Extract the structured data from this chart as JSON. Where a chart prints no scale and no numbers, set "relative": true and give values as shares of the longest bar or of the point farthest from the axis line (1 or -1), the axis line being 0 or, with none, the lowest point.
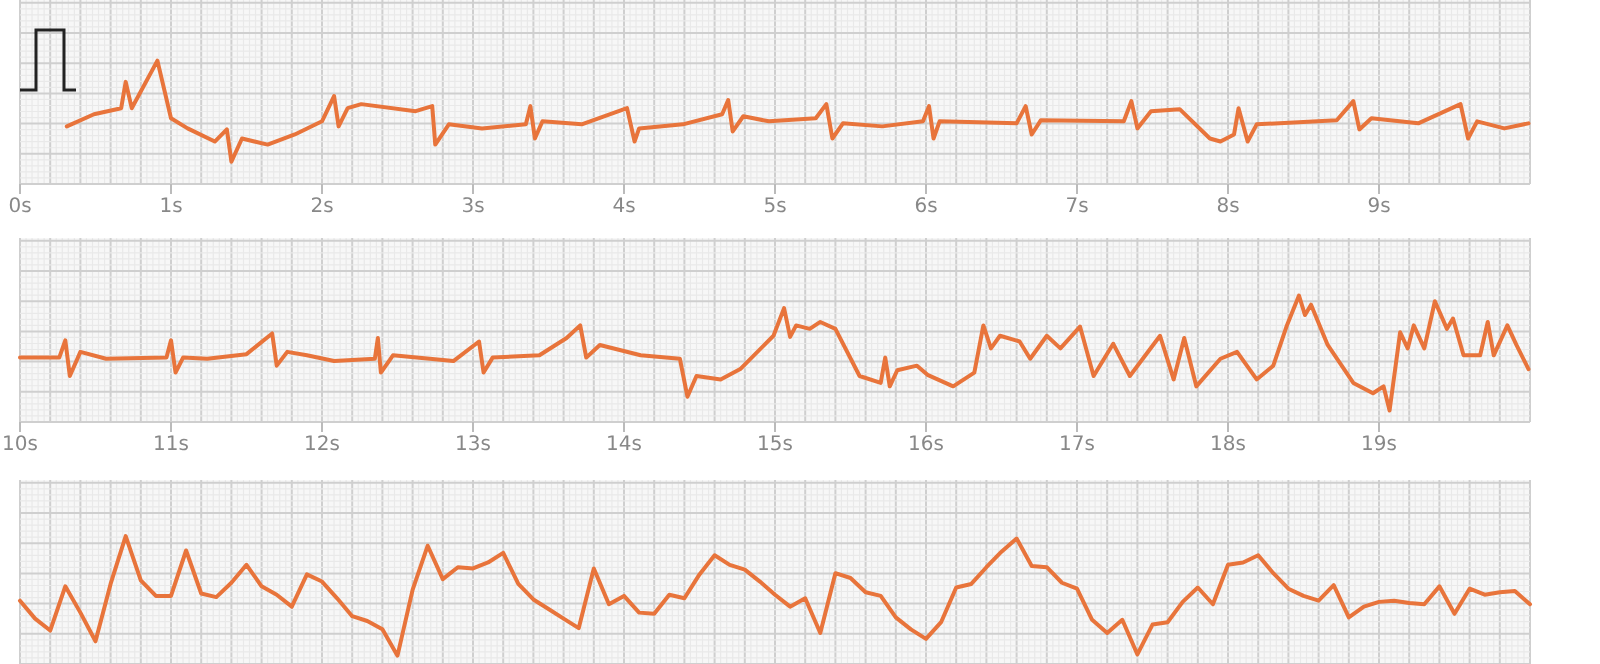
{
  "chart_data": [
    {
      "type": "line",
      "relative": true,
      "grid": true,
      "tick_labels": "x",
      "xlim": [
        0,
        10
      ],
      "xticks": [
        {
          "value": 0,
          "label": "0s"
        },
        {
          "value": 1,
          "label": "1s"
        },
        {
          "value": 2,
          "label": "2s"
        },
        {
          "value": 3,
          "label": "3s"
        },
        {
          "value": 4,
          "label": "4s"
        },
        {
          "value": 5,
          "label": "5s"
        },
        {
          "value": 6,
          "label": "6s"
        },
        {
          "value": 7,
          "label": "7s"
        },
        {
          "value": 8,
          "label": "8s"
        },
        {
          "value": 9,
          "label": "9s"
        }
      ],
      "x": [
        0.31,
        0.49,
        0.67,
        0.7,
        0.74,
        0.91,
        1.0,
        1.11,
        1.29,
        1.37,
        1.4,
        1.47,
        1.64,
        1.82,
        2.0,
        2.08,
        2.11,
        2.17,
        2.26,
        2.62,
        2.73,
        2.75,
        2.84,
        3.06,
        3.35,
        3.38,
        3.41,
        3.46,
        3.72,
        4.02,
        4.07,
        4.1,
        4.39,
        4.65,
        4.69,
        4.72,
        4.79,
        4.96,
        5.27,
        5.34,
        5.38,
        5.45,
        5.71,
        5.98,
        6.02,
        6.05,
        6.09,
        6.6,
        6.66,
        6.7,
        6.76,
        7.31,
        7.36,
        7.4,
        7.49,
        7.68,
        7.88,
        7.95,
        8.04,
        8.07,
        8.13,
        8.19,
        8.72,
        8.83,
        8.87,
        8.95,
        9.26,
        9.54,
        9.59,
        9.65,
        9.83,
        9.99
      ],
      "series": [
        {
          "color": "#e8743b",
          "values": [
            0.35,
            0.47,
            0.53,
            0.79,
            0.53,
            1,
            0.43,
            0.33,
            0.2,
            0.32,
            0,
            0.23,
            0.17,
            0.27,
            0.4,
            0.65,
            0.35,
            0.53,
            0.57,
            0.5,
            0.55,
            0.17,
            0.37,
            0.33,
            0.37,
            0.55,
            0.23,
            0.4,
            0.37,
            0.53,
            0.2,
            0.33,
            0.37,
            0.47,
            0.61,
            0.3,
            0.45,
            0.4,
            0.43,
            0.57,
            0.23,
            0.38,
            0.35,
            0.4,
            0.55,
            0.23,
            0.4,
            0.38,
            0.55,
            0.27,
            0.41,
            0.4,
            0.6,
            0.33,
            0.5,
            0.52,
            0.23,
            0.2,
            0.27,
            0.53,
            0.2,
            0.37,
            0.41,
            0.6,
            0.32,
            0.43,
            0.38,
            0.57,
            0.23,
            0.4,
            0.33,
            0.38
          ]
        }
      ]
    },
    {
      "type": "line",
      "relative": true,
      "grid": true,
      "tick_labels": "x",
      "xlim": [
        10,
        20
      ],
      "xticks": [
        {
          "value": 10,
          "label": "10s"
        },
        {
          "value": 11,
          "label": "11s"
        },
        {
          "value": 12,
          "label": "12s"
        },
        {
          "value": 13,
          "label": "13s"
        },
        {
          "value": 14,
          "label": "14s"
        },
        {
          "value": 15,
          "label": "15s"
        },
        {
          "value": 16,
          "label": "16s"
        },
        {
          "value": 17,
          "label": "17s"
        },
        {
          "value": 18,
          "label": "18s"
        },
        {
          "value": 19,
          "label": "19s"
        }
      ],
      "x": [
        10.0,
        10.26,
        10.3,
        10.33,
        10.4,
        10.57,
        10.97,
        11.0,
        11.03,
        11.08,
        11.24,
        11.5,
        11.67,
        11.7,
        11.77,
        11.9,
        12.08,
        12.35,
        12.37,
        12.39,
        12.47,
        12.87,
        13.04,
        13.07,
        13.13,
        13.44,
        13.62,
        13.71,
        13.75,
        13.84,
        14.11,
        14.37,
        14.42,
        14.48,
        14.64,
        14.77,
        14.99,
        15.06,
        15.1,
        15.14,
        15.23,
        15.3,
        15.4,
        15.56,
        15.7,
        15.73,
        15.76,
        15.81,
        15.94,
        16.01,
        16.18,
        16.32,
        16.38,
        16.43,
        16.49,
        16.62,
        16.69,
        16.8,
        16.89,
        17.02,
        17.11,
        17.24,
        17.35,
        17.55,
        17.64,
        17.71,
        17.79,
        17.95,
        18.06,
        18.19,
        18.3,
        18.39,
        18.47,
        18.51,
        18.55,
        18.66,
        18.83,
        18.96,
        19.03,
        19.07,
        19.14,
        19.19,
        19.23,
        19.3,
        19.37,
        19.45,
        19.49,
        19.56,
        19.67,
        19.72,
        19.76,
        19.85,
        19.91,
        19.99
      ],
      "series": [
        {
          "color": "#e8743b",
          "values": [
            0.46,
            0.46,
            0.61,
            0.3,
            0.51,
            0.45,
            0.46,
            0.61,
            0.33,
            0.46,
            0.45,
            0.49,
            0.67,
            0.39,
            0.51,
            0.48,
            0.43,
            0.45,
            0.63,
            0.33,
            0.48,
            0.43,
            0.6,
            0.33,
            0.46,
            0.48,
            0.63,
            0.74,
            0.46,
            0.57,
            0.48,
            0.45,
            0.12,
            0.3,
            0.27,
            0.36,
            0.65,
            0.89,
            0.64,
            0.74,
            0.71,
            0.77,
            0.71,
            0.3,
            0.24,
            0.46,
            0.21,
            0.35,
            0.39,
            0.31,
            0.21,
            0.33,
            0.74,
            0.54,
            0.65,
            0.6,
            0.45,
            0.65,
            0.54,
            0.73,
            0.3,
            0.58,
            0.3,
            0.65,
            0.27,
            0.63,
            0.21,
            0.45,
            0.51,
            0.27,
            0.39,
            0.74,
            1,
            0.83,
            0.92,
            0.57,
            0.24,
            0.15,
            0.21,
            0,
            0.68,
            0.54,
            0.74,
            0.54,
            0.95,
            0.71,
            0.8,
            0.48,
            0.48,
            0.77,
            0.48,
            0.74,
            0.57,
            0.36
          ]
        }
      ]
    },
    {
      "type": "line",
      "relative": true,
      "grid": true,
      "tick_labels": false,
      "categories": [
        null,
        null,
        null,
        null,
        null,
        null,
        null,
        null,
        null,
        null,
        null,
        null,
        null,
        null,
        null,
        null,
        null,
        null,
        null,
        null,
        null,
        null,
        null,
        null,
        null,
        null,
        null,
        null,
        null,
        null,
        null,
        null,
        null,
        null,
        null,
        null,
        null,
        null,
        null,
        null,
        null,
        null,
        null,
        null,
        null,
        null,
        null,
        null,
        null,
        null,
        null,
        null,
        null,
        null,
        null,
        null,
        null,
        null,
        null,
        null,
        null,
        null,
        null,
        null,
        null,
        null,
        null,
        null,
        null,
        null,
        null,
        null,
        null,
        null,
        null,
        null,
        null,
        null,
        null,
        null,
        null,
        null,
        null,
        null,
        null,
        null,
        null,
        null,
        null,
        null,
        null,
        null,
        null,
        null,
        null,
        null,
        null,
        null,
        null,
        null,
        null
      ],
      "series": [
        {
          "color": "#e8743b",
          "values": [
            0.46,
            0.31,
            0.21,
            0.58,
            0.36,
            0.12,
            0.6,
            1,
            0.63,
            0.5,
            0.5,
            0.88,
            0.52,
            0.49,
            0.61,
            0.76,
            0.58,
            0.51,
            0.41,
            0.68,
            0.62,
            0.48,
            0.33,
            0.29,
            0.22,
            0,
            0.55,
            0.92,
            0.64,
            0.74,
            0.73,
            0.78,
            0.86,
            0.6,
            0.47,
            0.39,
            0.31,
            0.23,
            0.73,
            0.43,
            0.5,
            0.36,
            0.35,
            0.51,
            0.48,
            0.68,
            0.84,
            0.76,
            0.72,
            0.62,
            0.51,
            0.41,
            0.48,
            0.19,
            0.69,
            0.65,
            0.53,
            0.5,
            0.32,
            0.22,
            0.14,
            0.28,
            0.57,
            0.6,
            0.74,
            0.87,
            0.98,
            0.75,
            0.74,
            0.61,
            0.56,
            0.3,
            0.19,
            0.3,
            0.01,
            0.26,
            0.28,
            0.45,
            0.57,
            0.43,
            0.76,
            0.78,
            0.84,
            0.69,
            0.56,
            0.5,
            0.46,
            0.59,
            0.32,
            0.41,
            0.45,
            0.46,
            0.44,
            0.43,
            0.58,
            0.35,
            0.56,
            0.51,
            0.53,
            0.54,
            0.43
          ]
        }
      ]
    }
  ]
}
